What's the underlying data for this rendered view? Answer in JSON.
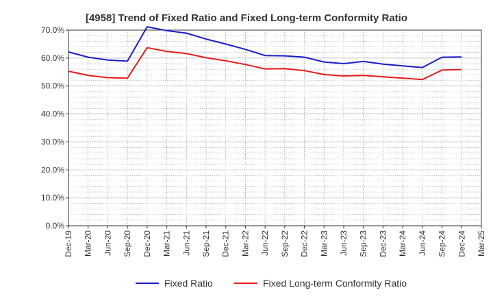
{
  "chart_data": {
    "type": "line",
    "title": "[4958]  Trend of Fixed Ratio and Fixed Long-term Conformity Ratio",
    "xlabel": "",
    "ylabel": "",
    "ylim": [
      0,
      70
    ],
    "y_ticks": [
      "0.0%",
      "10.0%",
      "20.0%",
      "30.0%",
      "40.0%",
      "50.0%",
      "60.0%",
      "70.0%"
    ],
    "y_tick_values": [
      0,
      10,
      20,
      30,
      40,
      50,
      60,
      70
    ],
    "categories": [
      "Dec-19",
      "Mar-20",
      "Jun-20",
      "Sep-20",
      "Dec-20",
      "Mar-21",
      "Jun-21",
      "Sep-21",
      "Dec-21",
      "Mar-22",
      "Jun-22",
      "Sep-22",
      "Dec-22",
      "Mar-23",
      "Jun-23",
      "Sep-23",
      "Dec-23",
      "Mar-24",
      "Jun-24",
      "Sep-24",
      "Dec-24",
      "Mar-25"
    ],
    "grid": true,
    "legend_position": "bottom",
    "series": [
      {
        "name": "Fixed Ratio",
        "color": "#1a1acc",
        "values": [
          62.2,
          60.3,
          59.3,
          58.9,
          71.2,
          69.8,
          68.9,
          66.8,
          65.0,
          63.1,
          60.9,
          60.8,
          60.3,
          58.6,
          58.0,
          58.8,
          57.8,
          57.2,
          56.6,
          60.3,
          60.4,
          null
        ]
      },
      {
        "name": "Fixed Long-term Conformity Ratio",
        "color": "#e61919",
        "values": [
          55.3,
          53.8,
          53.0,
          52.8,
          63.7,
          62.4,
          61.6,
          60.1,
          59.0,
          57.7,
          56.1,
          56.2,
          55.5,
          54.1,
          53.6,
          53.8,
          53.3,
          52.8,
          52.3,
          55.7,
          55.9,
          null
        ]
      }
    ]
  }
}
